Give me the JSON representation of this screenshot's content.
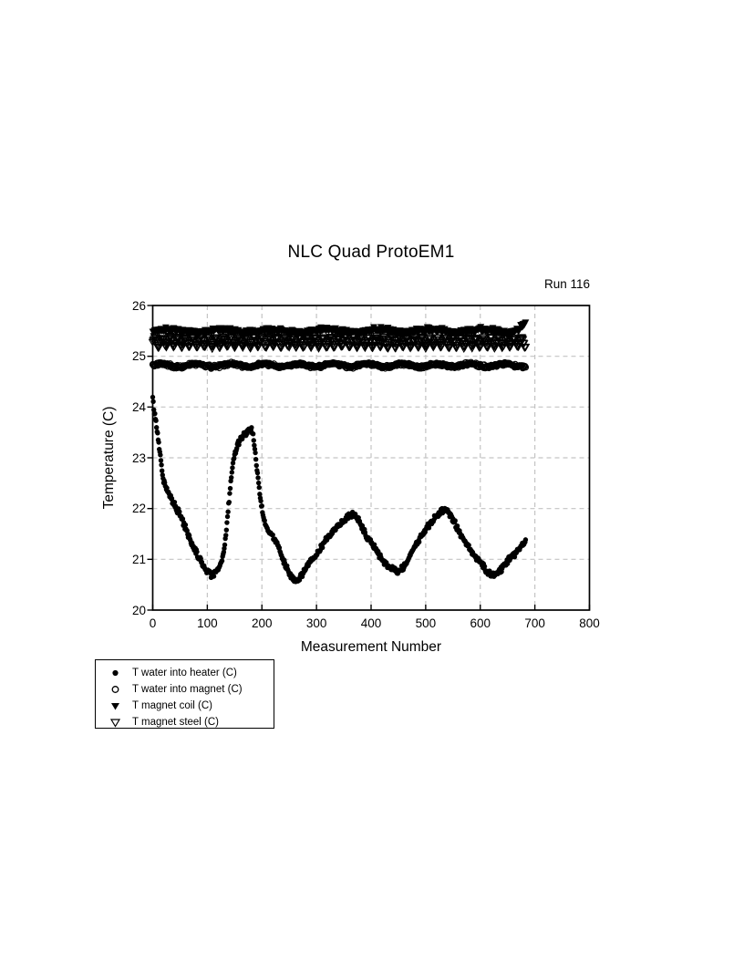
{
  "chart": {
    "title": "NLC Quad ProtoEM1",
    "run_label": "Run 116",
    "xlabel": "Measurement Number",
    "ylabel": "Temperature (C)"
  },
  "chart_data": {
    "type": "scatter",
    "title": "NLC Quad ProtoEM1",
    "annotation": "Run 116",
    "xlabel": "Measurement Number",
    "ylabel": "Temperature (C)",
    "xlim": [
      0,
      800
    ],
    "ylim": [
      20,
      26
    ],
    "x_ticks": [
      0,
      100,
      200,
      300,
      400,
      500,
      600,
      700,
      800
    ],
    "y_ticks": [
      20,
      21,
      22,
      23,
      24,
      25,
      26
    ],
    "grid": {
      "show": true,
      "style": "dashed",
      "color": "#c4c4c4"
    },
    "frame_color": "#000000",
    "marker_color": "#000000",
    "n_points": 684,
    "legend_position": "bottom-left-outside",
    "series": [
      {
        "name": "T water into heater (C)",
        "marker": "filled-circle",
        "profile": "anchors",
        "jitter": 0.07,
        "anchors": [
          [
            0,
            24.15
          ],
          [
            3,
            23.9
          ],
          [
            6,
            23.7
          ],
          [
            9,
            23.45
          ],
          [
            12,
            23.2
          ],
          [
            15,
            22.9
          ],
          [
            18,
            22.65
          ],
          [
            22,
            22.45
          ],
          [
            28,
            22.3
          ],
          [
            35,
            22.15
          ],
          [
            42,
            22.0
          ],
          [
            50,
            21.85
          ],
          [
            58,
            21.65
          ],
          [
            66,
            21.45
          ],
          [
            74,
            21.25
          ],
          [
            82,
            21.1
          ],
          [
            90,
            20.95
          ],
          [
            98,
            20.82
          ],
          [
            108,
            20.73
          ],
          [
            116,
            20.78
          ],
          [
            123,
            20.9
          ],
          [
            128,
            21.05
          ],
          [
            132,
            21.3
          ],
          [
            135,
            21.6
          ],
          [
            138,
            21.95
          ],
          [
            141,
            22.3
          ],
          [
            144,
            22.65
          ],
          [
            147,
            22.9
          ],
          [
            151,
            23.1
          ],
          [
            156,
            23.25
          ],
          [
            162,
            23.35
          ],
          [
            168,
            23.45
          ],
          [
            175,
            23.5
          ],
          [
            181,
            23.5
          ],
          [
            185,
            23.35
          ],
          [
            189,
            22.95
          ],
          [
            193,
            22.55
          ],
          [
            197,
            22.2
          ],
          [
            202,
            21.85
          ],
          [
            207,
            21.65
          ],
          [
            213,
            21.55
          ],
          [
            220,
            21.45
          ],
          [
            228,
            21.3
          ],
          [
            236,
            21.1
          ],
          [
            244,
            20.9
          ],
          [
            252,
            20.7
          ],
          [
            260,
            20.58
          ],
          [
            268,
            20.62
          ],
          [
            276,
            20.75
          ],
          [
            284,
            20.9
          ],
          [
            293,
            21.0
          ],
          [
            303,
            21.12
          ],
          [
            313,
            21.28
          ],
          [
            323,
            21.42
          ],
          [
            333,
            21.55
          ],
          [
            343,
            21.67
          ],
          [
            353,
            21.78
          ],
          [
            362,
            21.87
          ],
          [
            370,
            21.9
          ],
          [
            378,
            21.78
          ],
          [
            386,
            21.6
          ],
          [
            394,
            21.45
          ],
          [
            403,
            21.3
          ],
          [
            412,
            21.15
          ],
          [
            421,
            21.0
          ],
          [
            430,
            20.88
          ],
          [
            440,
            20.78
          ],
          [
            450,
            20.72
          ],
          [
            459,
            20.82
          ],
          [
            468,
            20.98
          ],
          [
            477,
            21.15
          ],
          [
            486,
            21.32
          ],
          [
            495,
            21.5
          ],
          [
            504,
            21.65
          ],
          [
            513,
            21.78
          ],
          [
            522,
            21.9
          ],
          [
            531,
            21.98
          ],
          [
            539,
            22.0
          ],
          [
            547,
            21.88
          ],
          [
            555,
            21.7
          ],
          [
            563,
            21.52
          ],
          [
            572,
            21.35
          ],
          [
            582,
            21.18
          ],
          [
            592,
            21.02
          ],
          [
            602,
            20.88
          ],
          [
            612,
            20.75
          ],
          [
            622,
            20.65
          ],
          [
            632,
            20.7
          ],
          [
            642,
            20.85
          ],
          [
            652,
            21.0
          ],
          [
            661,
            21.1
          ],
          [
            670,
            21.2
          ],
          [
            677,
            21.3
          ],
          [
            683,
            21.38
          ]
        ]
      },
      {
        "name": "T water into magnet (C)",
        "marker": "open-circle",
        "profile": "band",
        "base": 24.82,
        "wave_amp": 0.03,
        "wave_period": 63,
        "jitter": 0.04
      },
      {
        "name": "T magnet coil (C)",
        "marker": "filled-triangle-down",
        "profile": "band",
        "base": 25.5,
        "wave_amp": 0.03,
        "wave_period": 97,
        "jitter": 0.06,
        "end_rise": {
          "from": 660,
          "rate": 0.006
        }
      },
      {
        "name": "T magnet steel (C)",
        "marker": "open-triangle-down",
        "profile": "sawtooth",
        "base": 25.28,
        "saw_amp": 0.1,
        "saw_period": 14,
        "jitter": 0.035
      }
    ]
  }
}
